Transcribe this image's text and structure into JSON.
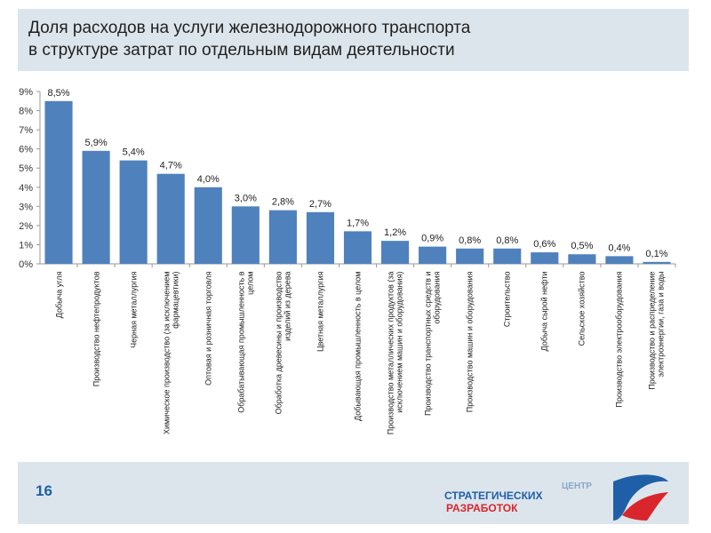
{
  "title_lines": [
    "Доля расходов на услуги железнодорожного транспорта",
    "в структуре затрат по отдельным видам деятельности"
  ],
  "chart_data": {
    "type": "bar",
    "categories": [
      "Добыча угля",
      "Производство нефтепродуктов",
      "Черная металлургия",
      "Химическое производство (за исключением фармацевтики)",
      "Оптовая и розничная торговля",
      "Обрабатывающая промышленность в целом",
      "Обработка древесины и производство изделий из дерева",
      "Цветная металлургия",
      "Добывающая промышленность в целом",
      "Производство металлических продуктов (за исключением машин и оборудования)",
      "Производство транспортных средств и оборудования",
      "Производство машин и оборудования",
      "Строительство",
      "Добыча сырой нефти",
      "Сельское хозяйство",
      "Производство электрооборудования",
      "Производство и распределение электроэнергии, газа и воды"
    ],
    "values": [
      8.5,
      5.9,
      5.4,
      4.7,
      4.0,
      3.0,
      2.8,
      2.7,
      1.7,
      1.2,
      0.9,
      0.8,
      0.8,
      0.6,
      0.5,
      0.4,
      0.1
    ],
    "value_labels": [
      "8,5%",
      "5,9%",
      "5,4%",
      "4,7%",
      "4,0%",
      "3,0%",
      "2,8%",
      "2,7%",
      "1,7%",
      "1,2%",
      "0,9%",
      "0,8%",
      "0,8%",
      "0,6%",
      "0,5%",
      "0,4%",
      "0,1%"
    ],
    "color": "#4f81bd",
    "ylim": [
      0,
      9
    ],
    "yticks": [
      {
        "value": 0,
        "label": "0%"
      },
      {
        "value": 1,
        "label": "1%"
      },
      {
        "value": 2,
        "label": "2%"
      },
      {
        "value": 3,
        "label": "3%"
      },
      {
        "value": 4,
        "label": "4%"
      },
      {
        "value": 5,
        "label": "5%"
      },
      {
        "value": 6,
        "label": "6%"
      },
      {
        "value": 7,
        "label": "7%"
      },
      {
        "value": 8,
        "label": "8%"
      },
      {
        "value": 9,
        "label": "9%"
      }
    ],
    "grid": false
  },
  "footer": {
    "page_number": "16",
    "logo": [
      "ЦЕНТР",
      "СТРАТЕГИЧЕСКИХ",
      "РАЗРАБОТОК"
    ]
  }
}
